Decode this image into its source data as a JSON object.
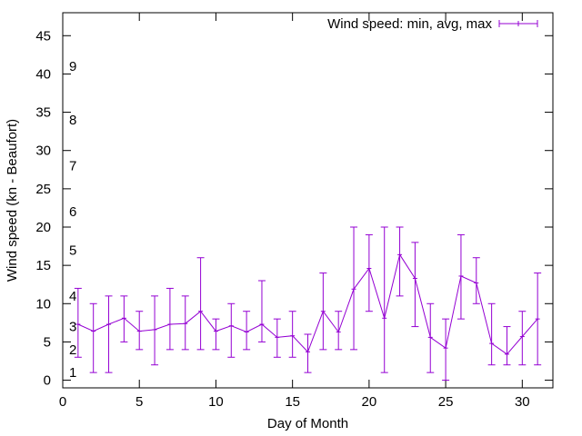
{
  "chart_data": {
    "type": "line",
    "title": "",
    "xlabel": "Day of Month",
    "ylabel": "Wind speed (kn - Beaufort)",
    "xlim": [
      0,
      32
    ],
    "ylim": [
      -1,
      48
    ],
    "xticks": [
      0,
      5,
      10,
      15,
      20,
      25,
      30
    ],
    "yticks": [
      0,
      5,
      10,
      15,
      20,
      25,
      30,
      35,
      40,
      45
    ],
    "grid": false,
    "legend_position": "top-right",
    "series_color": "#9400d3",
    "series": [
      {
        "name": "Wind speed: min, avg, max",
        "x": [
          1,
          2,
          3,
          4,
          5,
          6,
          7,
          8,
          9,
          10,
          11,
          12,
          13,
          14,
          15,
          16,
          17,
          18,
          19,
          20,
          21,
          22,
          23,
          24,
          25,
          26,
          27,
          28,
          29,
          30,
          31
        ],
        "avg": [
          7.3,
          6.4,
          7.3,
          8.1,
          6.4,
          6.6,
          7.3,
          7.4,
          9.0,
          6.4,
          7.1,
          6.3,
          7.3,
          5.6,
          5.8,
          3.7,
          9.0,
          6.3,
          11.9,
          14.6,
          8.1,
          16.4,
          13.3,
          5.6,
          4.2,
          13.6,
          12.7,
          4.8,
          3.4,
          5.7,
          8.0
        ],
        "min": [
          3,
          1,
          1,
          5,
          4,
          2,
          4,
          4,
          4,
          4,
          3,
          4,
          5,
          3,
          3,
          1,
          4,
          4,
          4,
          9,
          1,
          11,
          7,
          1,
          0,
          8,
          10,
          2,
          2,
          2,
          2
        ],
        "max": [
          12,
          10,
          11,
          11,
          9,
          11,
          12,
          11,
          16,
          8,
          10,
          9,
          13,
          8,
          9,
          6,
          14,
          9,
          20,
          19,
          20,
          20,
          18,
          10,
          8,
          19,
          16,
          10,
          7,
          9,
          14
        ]
      }
    ],
    "beaufort_labels": [
      {
        "text": "1",
        "y": 1
      },
      {
        "text": "2",
        "y": 4
      },
      {
        "text": "3",
        "y": 7
      },
      {
        "text": "4",
        "y": 11
      },
      {
        "text": "5",
        "y": 17
      },
      {
        "text": "6",
        "y": 22
      },
      {
        "text": "7",
        "y": 28
      },
      {
        "text": "8",
        "y": 34
      },
      {
        "text": "9",
        "y": 41
      }
    ]
  }
}
